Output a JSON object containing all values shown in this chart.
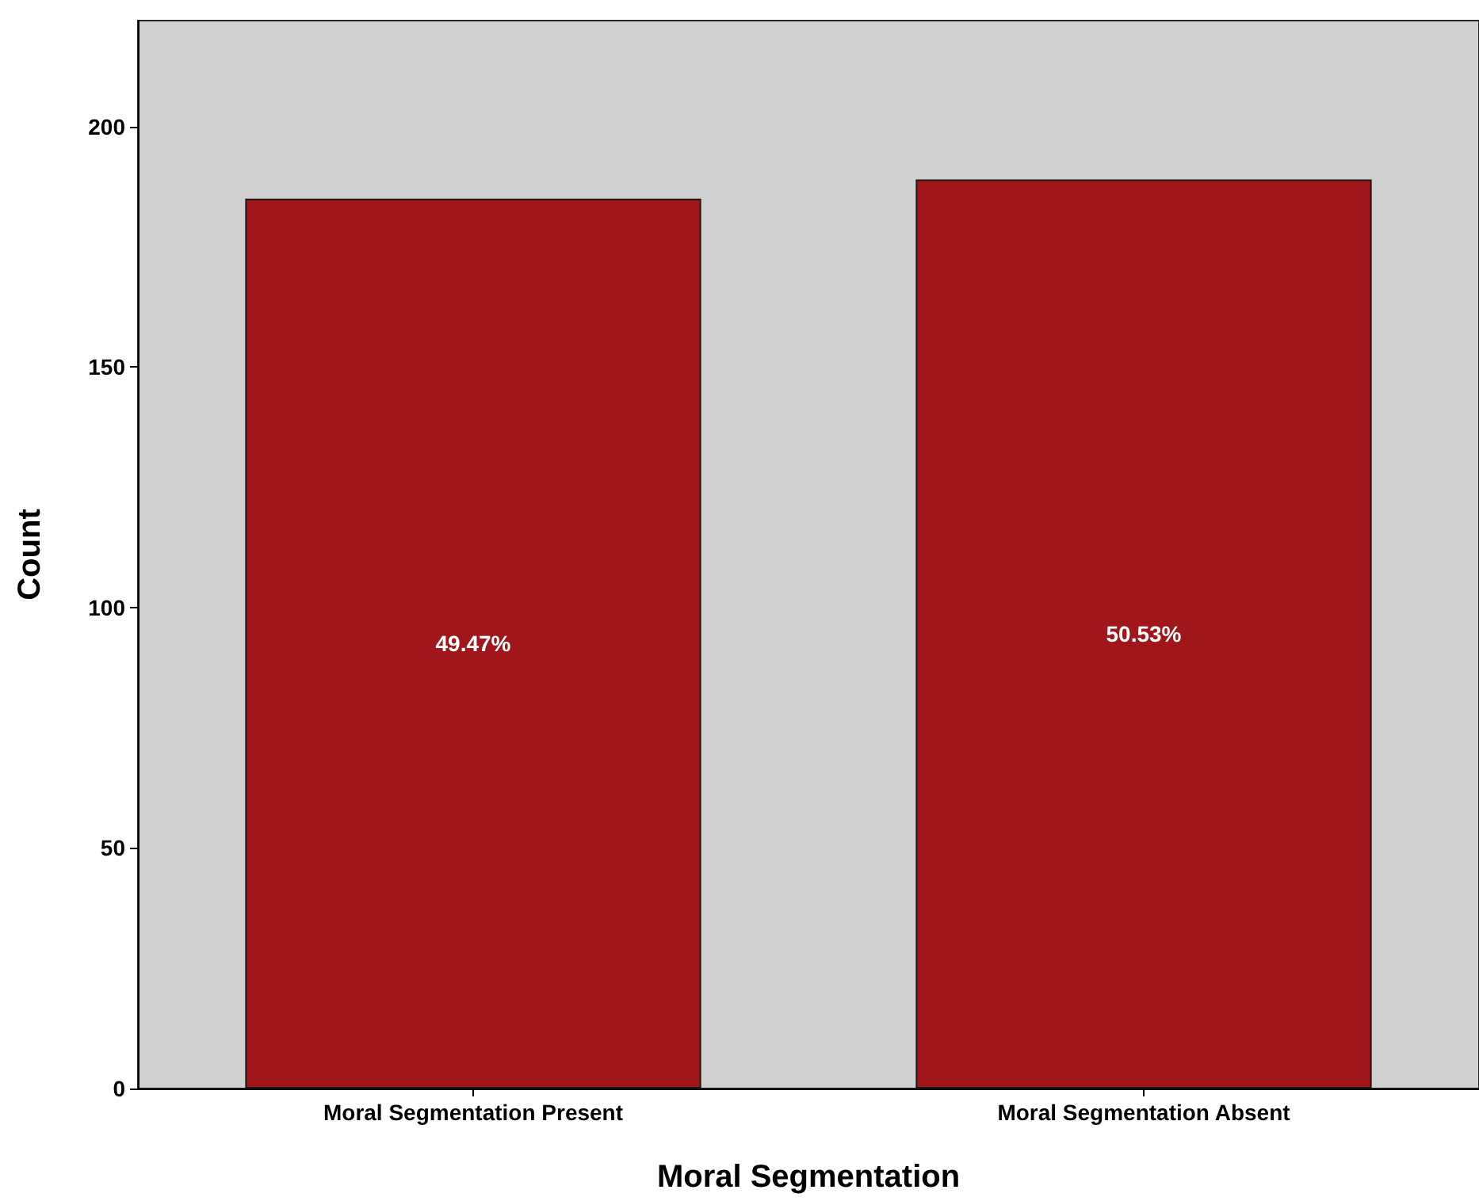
{
  "chart_data": {
    "type": "bar",
    "categories": [
      "Moral Segmentation Present",
      "Moral Segmentation Absent"
    ],
    "values": [
      185,
      189
    ],
    "annotations": [
      "49.47%",
      "50.53%"
    ],
    "color": "#a0161a",
    "xlabel": "Moral Segmentation",
    "ylabel": "Count",
    "ylim": [
      0,
      222
    ],
    "yticks": [
      0,
      50,
      100,
      150,
      200
    ],
    "grid": false
  }
}
